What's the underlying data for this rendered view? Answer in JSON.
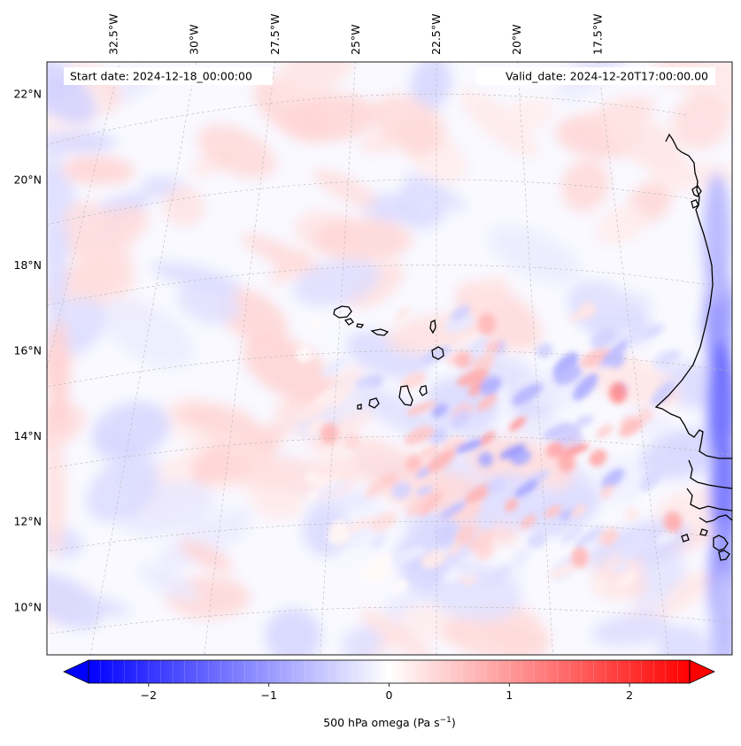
{
  "header": {
    "start_date": "Start date: 2024-12-18_00:00:00",
    "valid_date": "Valid_date: 2024-12-20T17:00:00.00"
  },
  "map": {
    "variable": "500 hPa omega",
    "lon_labels": [
      "32.5°W",
      "30°W",
      "27.5°W",
      "25°W",
      "22.5°W",
      "20°W",
      "17.5°W"
    ],
    "lat_labels": [
      "22°N",
      "20°N",
      "18°N",
      "16°N",
      "14°N",
      "12°N",
      "10°N"
    ],
    "lon_values": [
      -32.5,
      -30,
      -27.5,
      -25,
      -22.5,
      -20,
      -17.5
    ],
    "lat_values": [
      22,
      20,
      18,
      16,
      14,
      12,
      10
    ]
  },
  "colorbar": {
    "label": "500 hPa omega (Pa s",
    "label_sup": "−1",
    "label_end": ")",
    "ticks": [
      "−2",
      "−1",
      "0",
      "1",
      "2"
    ],
    "tick_values": [
      -2,
      -1,
      0,
      1,
      2
    ],
    "range": [
      -2.5,
      2.5
    ],
    "colormap": "bwr",
    "color_low": "#0000ff",
    "color_mid": "#ffffff",
    "color_high": "#ff0000",
    "extend": "both"
  }
}
